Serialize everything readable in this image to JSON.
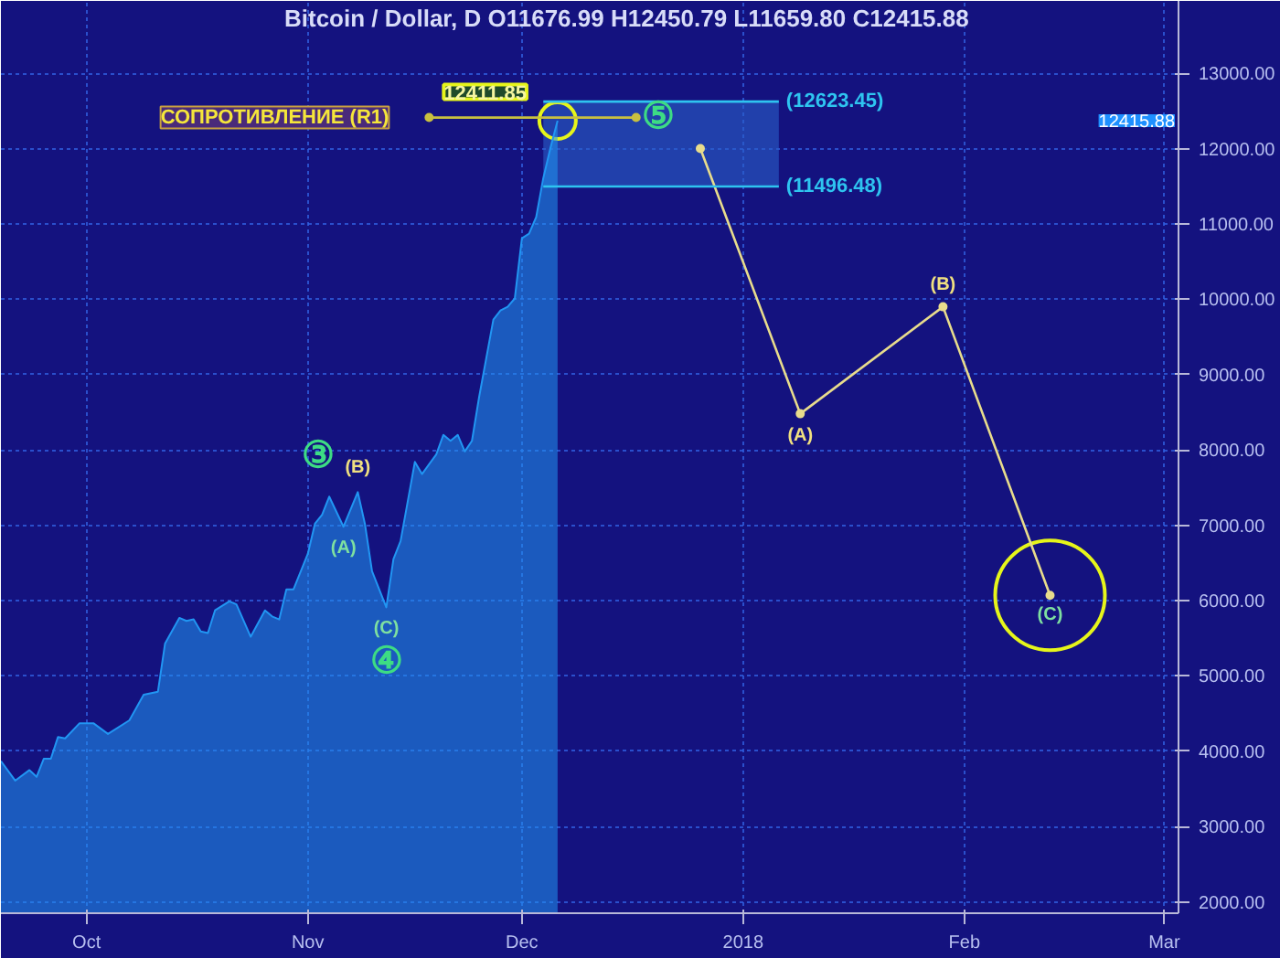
{
  "chart_data": {
    "type": "area",
    "title": "Bitcoin / Dollar, D",
    "subtitle": "O11676.99 H12450.79 L11659.80 C12415.88",
    "xlim": [
      "2017-09-19",
      "2018-03-03"
    ],
    "ylim": [
      1850,
      13960
    ],
    "xticks": [
      {
        "value": "2017-10-01",
        "label": "Oct"
      },
      {
        "value": "2017-11-01",
        "label": "Nov"
      },
      {
        "value": "2017-12-01",
        "label": "Dec"
      },
      {
        "value": "2018-01-01",
        "label": "2018"
      },
      {
        "value": "2018-02-01",
        "label": "Feb"
      },
      {
        "value": "2018-03-01",
        "label": "Mar"
      }
    ],
    "yticks": [
      {
        "value": 2000,
        "label": "2000.00"
      },
      {
        "value": 3000,
        "label": "3000.00"
      },
      {
        "value": 4000,
        "label": "4000.00"
      },
      {
        "value": 5000,
        "label": "5000.00"
      },
      {
        "value": 6000,
        "label": "6000.00"
      },
      {
        "value": 7000,
        "label": "7000.00"
      },
      {
        "value": 8000,
        "label": "8000.00"
      },
      {
        "value": 9000,
        "label": "9000.00"
      },
      {
        "value": 10000,
        "label": "10000.00"
      },
      {
        "value": 11000,
        "label": "11000.00"
      },
      {
        "value": 12000,
        "label": "12000.00"
      },
      {
        "value": 13000,
        "label": "13000.00"
      }
    ],
    "grid": true,
    "series": [
      {
        "color": "#2196f3",
        "x": [
          "2017-09-19",
          "2017-09-21",
          "2017-09-23",
          "2017-09-24",
          "2017-09-25",
          "2017-09-26",
          "2017-09-27",
          "2017-09-28",
          "2017-09-30",
          "2017-10-02",
          "2017-10-04",
          "2017-10-07",
          "2017-10-09",
          "2017-10-11",
          "2017-10-12",
          "2017-10-14",
          "2017-10-15",
          "2017-10-16",
          "2017-10-17",
          "2017-10-18",
          "2017-10-19",
          "2017-10-21",
          "2017-10-22",
          "2017-10-24",
          "2017-10-26",
          "2017-10-27",
          "2017-10-28",
          "2017-10-29",
          "2017-10-30",
          "2017-11-01",
          "2017-11-02",
          "2017-11-03",
          "2017-11-04",
          "2017-11-06",
          "2017-11-08",
          "2017-11-09",
          "2017-11-10",
          "2017-11-12",
          "2017-11-13",
          "2017-11-14",
          "2017-11-16",
          "2017-11-17",
          "2017-11-19",
          "2017-11-20",
          "2017-11-21",
          "2017-11-22",
          "2017-11-23",
          "2017-11-24",
          "2017-11-25",
          "2017-11-27",
          "2017-11-28",
          "2017-11-29",
          "2017-11-30",
          "2017-12-01",
          "2017-12-02",
          "2017-12-03",
          "2017-12-04",
          "2017-12-05",
          "2017-12-06"
        ],
        "values": [
          3870,
          3610,
          3750,
          3660,
          3900,
          3900,
          4190,
          4170,
          4370,
          4370,
          4230,
          4410,
          4750,
          4790,
          5430,
          5770,
          5730,
          5750,
          5590,
          5570,
          5870,
          5990,
          5950,
          5520,
          5870,
          5790,
          5750,
          6150,
          6150,
          6620,
          7020,
          7140,
          7380,
          6980,
          7440,
          7020,
          6390,
          5910,
          6550,
          6790,
          7840,
          7680,
          7940,
          8200,
          8120,
          8200,
          7980,
          8120,
          8700,
          9730,
          9850,
          9900,
          10010,
          10810,
          10870,
          11090,
          11610,
          12010,
          12370
        ]
      },
      {
        "type": "line",
        "color": "#e8dc8c",
        "marker": "circle",
        "x": [
          "2017-12-26",
          "2018-01-09",
          "2018-01-29",
          "2018-02-13"
        ],
        "values": [
          12000,
          8480,
          9900,
          6070
        ]
      },
      {
        "type": "line",
        "color": "#c8c040",
        "marker": "circle",
        "x": [
          "2017-11-18",
          "2017-12-17"
        ],
        "values": [
          12411.85,
          12411.85
        ]
      },
      {
        "type": "line",
        "color": "#2ec4f0",
        "x": [
          "2017-12-04",
          "2018-01-06"
        ],
        "values": [
          12623.45,
          12623.45
        ],
        "value_labels": [
          null,
          "(12623.45)"
        ]
      },
      {
        "type": "line",
        "color": "#2ec4f0",
        "x": [
          "2017-12-04",
          "2018-01-06"
        ],
        "values": [
          11496.48,
          11496.48
        ],
        "value_labels": [
          null,
          "(11496.48)"
        ]
      }
    ],
    "bands": [
      {
        "axis": "y",
        "from": 11496.48,
        "to": 12623.45,
        "color": "#2a5fc8"
      }
    ],
    "annotations": [
      {
        "text": "12411.85",
        "x": "2017-11-18",
        "y": 12411.85
      },
      {
        "text": "СОПРОТИВЛЕНИЕ (R1)",
        "x": "2017-11-18",
        "y": 12411.85
      },
      "12415.88",
      {
        "text": "③",
        "x": "2017-11-04",
        "y": 7380
      },
      {
        "text": "(B)",
        "x": "2017-11-08",
        "y": 7440
      },
      {
        "text": "(A)",
        "x": "2017-11-06",
        "y": 6980
      },
      {
        "text": "(C)",
        "x": "2017-11-12",
        "y": 5910
      },
      {
        "text": "④",
        "x": "2017-11-12",
        "y": 5910
      },
      {
        "text": "⑤",
        "x": "2017-12-06",
        "y": 12370
      },
      {
        "text": "(A)",
        "x": "2018-01-09",
        "y": 8480
      },
      {
        "text": "(B)",
        "x": "2018-01-29",
        "y": 9900
      },
      {
        "text": "(C)",
        "x": "2018-02-13",
        "y": 6070
      }
    ]
  }
}
